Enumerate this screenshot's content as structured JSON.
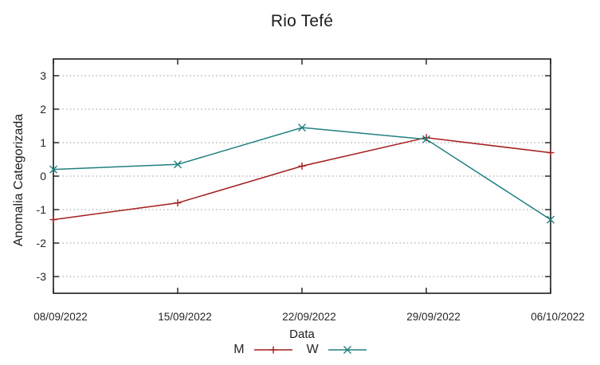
{
  "chart_data": {
    "type": "line",
    "title": "Rio Tefé",
    "xlabel": "Data",
    "ylabel": "Anomalia Categorizada",
    "categories": [
      "08/09/2022",
      "15/09/2022",
      "22/09/2022",
      "29/09/2022",
      "06/10/2022"
    ],
    "yticks": [
      3,
      2,
      1,
      0,
      -1,
      -2,
      -3
    ],
    "ylim": [
      -3.5,
      3.5
    ],
    "grid": "horizontal-dotted",
    "legend_position": "below-x-axis",
    "series": [
      {
        "name": "M",
        "color": "#a51f1f",
        "marker": "plus",
        "values": [
          -1.3,
          -0.8,
          0.3,
          1.15,
          0.7
        ]
      },
      {
        "name": "W",
        "color": "#217f7f",
        "marker": "cross",
        "values": [
          0.2,
          0.35,
          1.45,
          1.1,
          -1.3
        ]
      }
    ],
    "colors": {
      "axis": "#1c1c1c",
      "grid": "#ababab",
      "text": "#262626",
      "background": "#ffffff"
    }
  }
}
